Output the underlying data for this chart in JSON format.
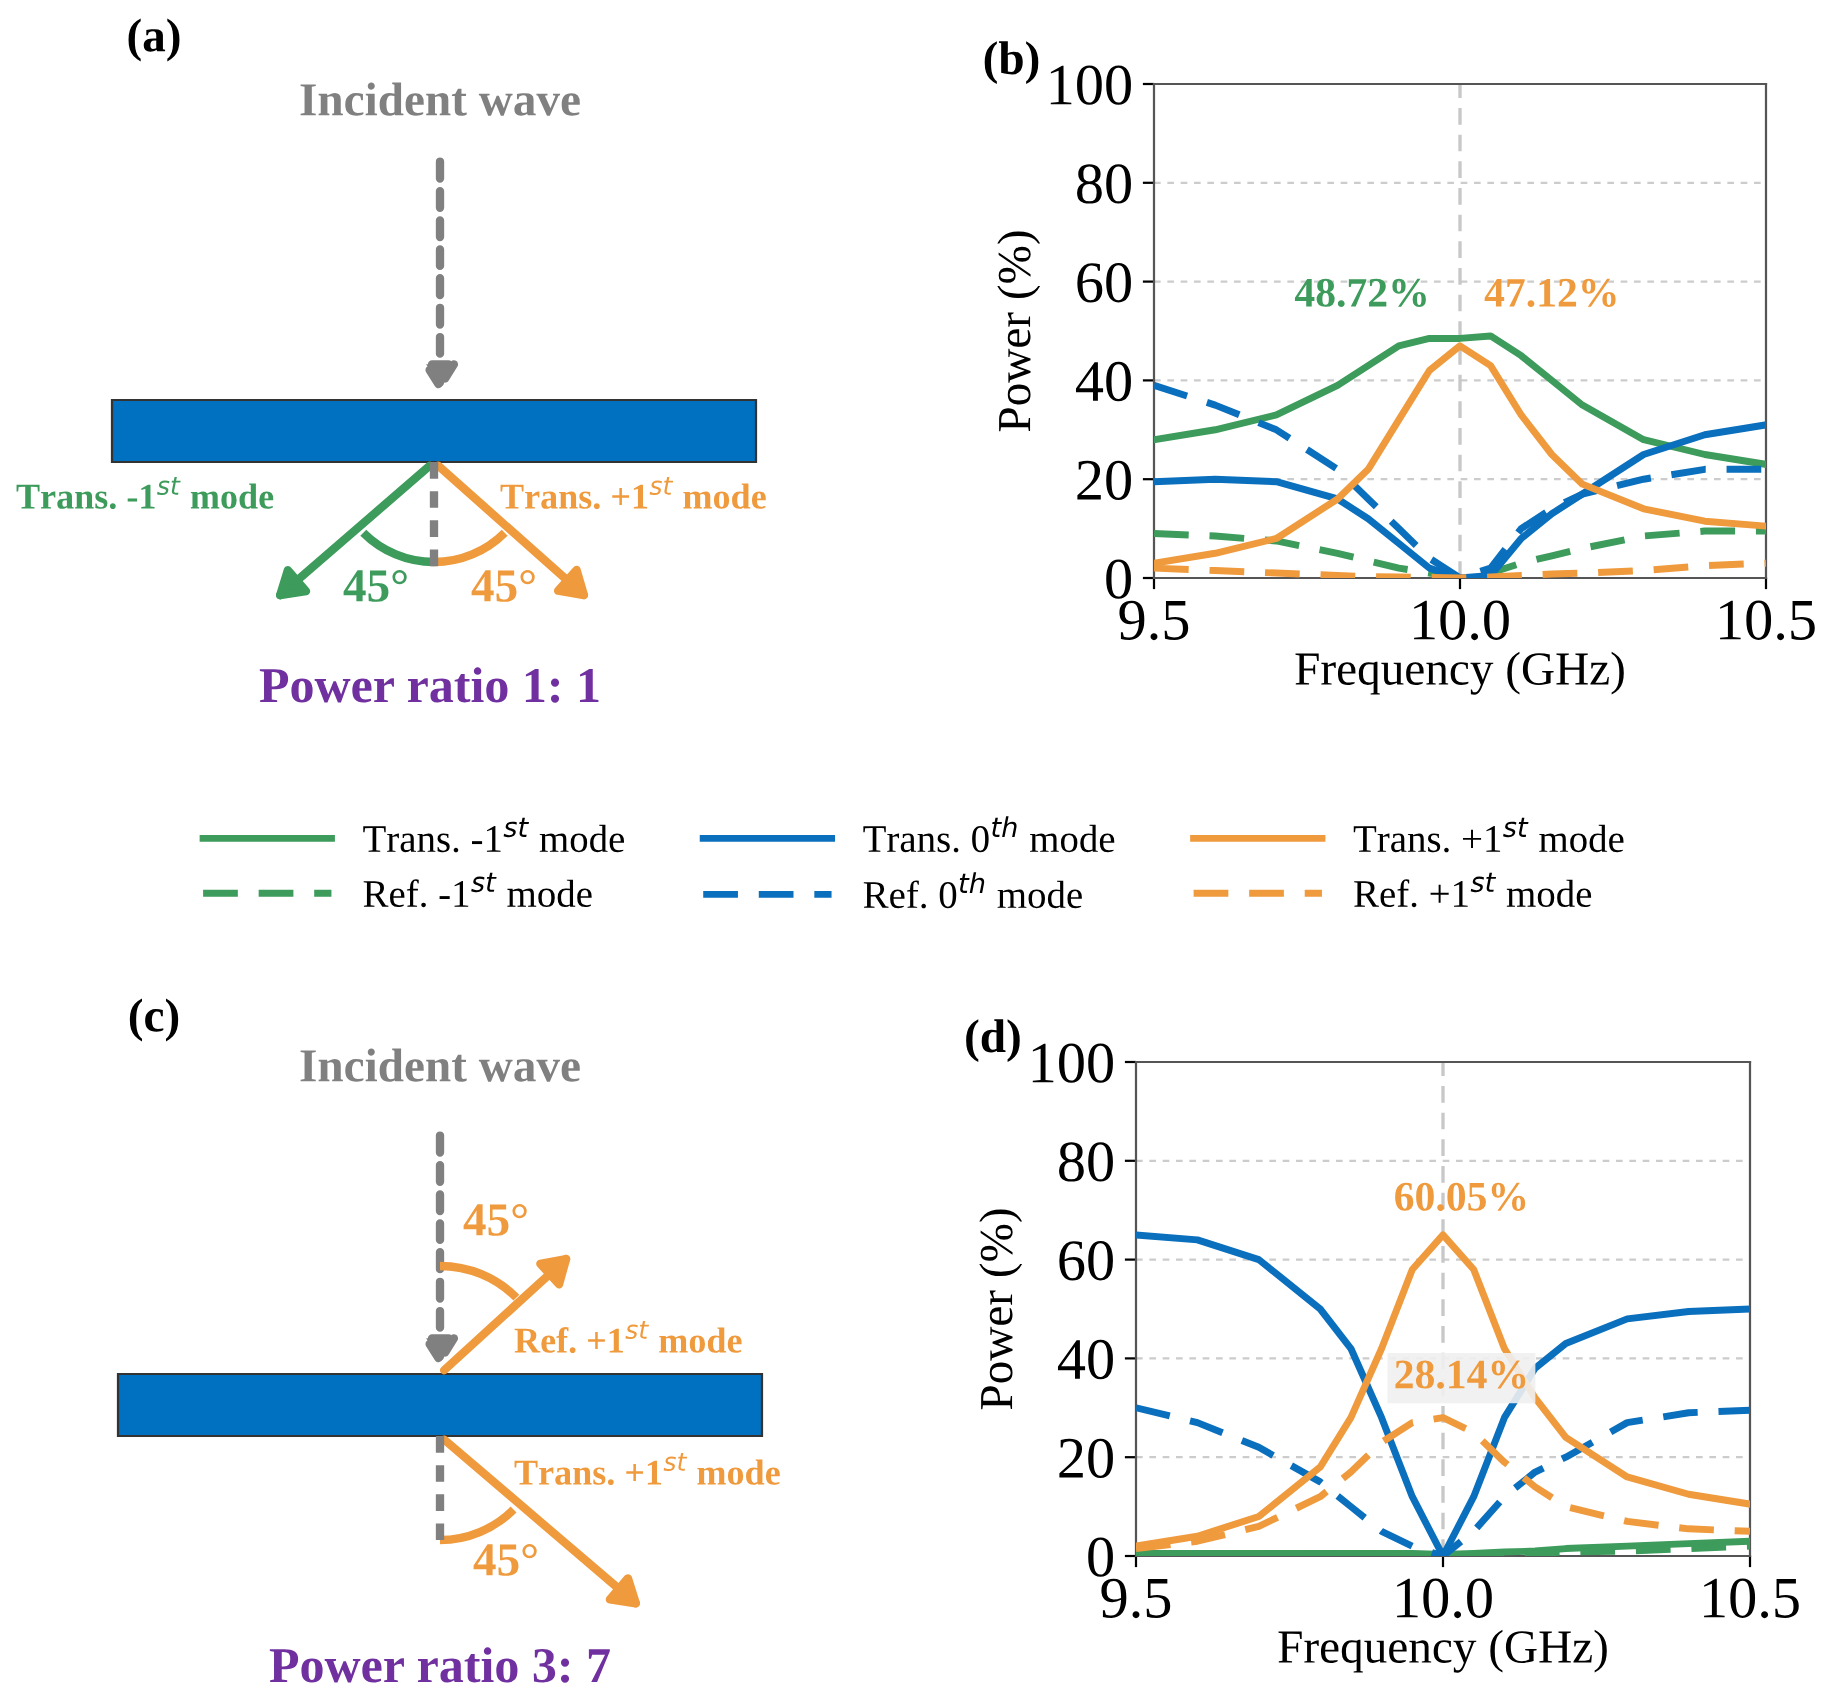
{
  "chart_data": [
    {
      "type": "other",
      "title": "(a)",
      "annotations": [
        "Incident wave",
        "Trans. -1$^{st}$ mode",
        "Trans. +1$^{st}$ mode",
        "45°",
        "45°",
        "Power ratio 1: 1"
      ]
    },
    {
      "type": "line",
      "title": "(b)",
      "xlabel": "Frequency (GHz)",
      "ylabel": "Power (%)",
      "x": [
        9.5,
        9.6,
        9.7,
        9.8,
        9.85,
        9.9,
        9.95,
        10.0,
        10.05,
        10.1,
        10.15,
        10.2,
        10.3,
        10.4,
        10.5
      ],
      "xlim": [
        9.5,
        10.5
      ],
      "xticks": [
        {
          "value": 9.5,
          "label": "9.5"
        },
        {
          "value": 10.0,
          "label": "10.0"
        },
        {
          "value": 10.5,
          "label": "10.5"
        }
      ],
      "ylim": [
        0,
        100
      ],
      "yticks": [
        0,
        20,
        40,
        60,
        80,
        100
      ],
      "grid": "y",
      "legend": "bottom",
      "ref_lines": [
        {
          "axis": "x",
          "value": 10.0,
          "color": "#c8c8c8"
        }
      ],
      "annotations": [
        "48.72%",
        "47.12%"
      ],
      "series": [
        {
          "name": "Trans. -1$^{st}$ mode",
          "color": "#3d9b5c",
          "line_style": "solid",
          "values": [
            28,
            30,
            33,
            39,
            43,
            47,
            48.5,
            48.5,
            49,
            45,
            40,
            35,
            28,
            25,
            23
          ]
        },
        {
          "name": "Ref. -1$^{st}$ mode",
          "color": "#3d9b5c",
          "line_style": "dashed",
          "values": [
            9,
            8.5,
            7.5,
            5,
            3.5,
            2,
            1,
            0,
            1,
            3,
            4.5,
            6,
            8.5,
            9.5,
            9.5
          ]
        },
        {
          "name": "Trans. 0$^{th}$ mode",
          "color": "#0a6fbd",
          "line_style": "solid",
          "values": [
            19.5,
            20,
            19.5,
            16,
            12,
            7,
            2,
            0,
            0.5,
            8,
            13,
            17,
            25,
            29,
            31
          ]
        },
        {
          "name": "Ref. 0$^{th}$ mode",
          "color": "#0a6fbd",
          "line_style": "dashed",
          "values": [
            39,
            35,
            30,
            22,
            16,
            10,
            4,
            0,
            2,
            10,
            14,
            17,
            20,
            22,
            22
          ]
        },
        {
          "name": "Trans. +1$^{st}$ mode",
          "color": "#ef9a3d",
          "line_style": "solid",
          "values": [
            3,
            5,
            8,
            16,
            22,
            32,
            42,
            47,
            43,
            33,
            25,
            19,
            14,
            11.5,
            10.5
          ]
        },
        {
          "name": "Ref. +1$^{st}$ mode",
          "color": "#ef9a3d",
          "line_style": "dashed",
          "values": [
            2,
            1.5,
            1,
            0.5,
            0.3,
            0.2,
            0.1,
            0,
            0.2,
            0.5,
            0.8,
            1,
            1.5,
            2.5,
            3
          ]
        }
      ]
    },
    {
      "type": "other",
      "title": "(c)",
      "annotations": [
        "Incident wave",
        "45°",
        "Ref. +1$^{st}$ mode",
        "Trans. +1$^{st}$ mode",
        "45°",
        "Power ratio 3: 7"
      ]
    },
    {
      "type": "line",
      "title": "(d)",
      "xlabel": "Frequency (GHz)",
      "ylabel": "Power (%)",
      "x": [
        9.5,
        9.6,
        9.7,
        9.8,
        9.85,
        9.9,
        9.95,
        10.0,
        10.05,
        10.1,
        10.15,
        10.2,
        10.3,
        10.4,
        10.5
      ],
      "xlim": [
        9.5,
        10.5
      ],
      "xticks": [
        {
          "value": 9.5,
          "label": "9.5"
        },
        {
          "value": 10.0,
          "label": "10.0"
        },
        {
          "value": 10.5,
          "label": "10.5"
        }
      ],
      "ylim": [
        0,
        100
      ],
      "yticks": [
        0,
        20,
        40,
        60,
        80,
        100
      ],
      "grid": "y",
      "ref_lines": [
        {
          "axis": "x",
          "value": 10.0,
          "color": "#c8c8c8"
        }
      ],
      "annotations": [
        "60.05%",
        "28.14%"
      ],
      "series": [
        {
          "color": "#3d9b5c",
          "line_style": "solid",
          "values": [
            0.5,
            0.5,
            0.5,
            0.5,
            0.5,
            0.5,
            0.5,
            0.3,
            0.5,
            0.8,
            1,
            1.5,
            2,
            2.5,
            3
          ]
        },
        {
          "color": "#3d9b5c",
          "line_style": "dashed",
          "values": [
            0.5,
            0.4,
            0.3,
            0.2,
            0.2,
            0.1,
            0.1,
            0,
            0.1,
            0.3,
            0.5,
            0.8,
            1,
            1.5,
            2
          ]
        },
        {
          "color": "#0a6fbd",
          "line_style": "solid",
          "values": [
            65,
            64,
            60,
            50,
            42,
            28,
            12,
            0,
            12,
            28,
            38,
            43,
            48,
            49.5,
            50
          ]
        },
        {
          "color": "#0a6fbd",
          "line_style": "dashed",
          "values": [
            30,
            27,
            22,
            15,
            10,
            5,
            2,
            0,
            5,
            12,
            17,
            20,
            27,
            29,
            29.5
          ]
        },
        {
          "color": "#ef9a3d",
          "line_style": "solid",
          "values": [
            2,
            4,
            8,
            18,
            28,
            42,
            58,
            65,
            58,
            42,
            32,
            24,
            16,
            12.5,
            10.5
          ]
        },
        {
          "color": "#ef9a3d",
          "line_style": "dashed",
          "values": [
            1.5,
            3,
            6,
            12,
            17,
            23,
            27,
            28,
            25,
            19,
            14,
            10,
            7,
            5.5,
            5
          ]
        }
      ]
    }
  ]
}
